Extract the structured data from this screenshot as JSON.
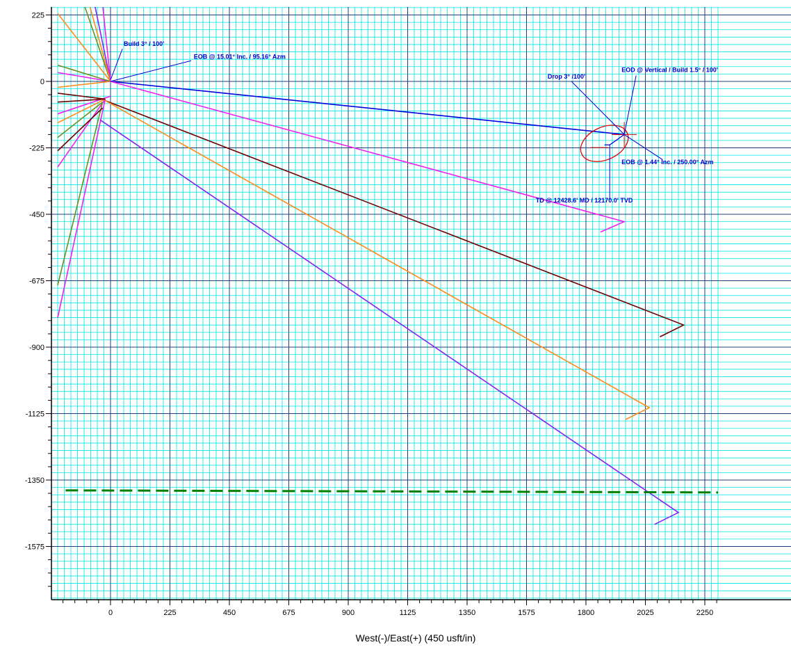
{
  "chart_data": {
    "type": "line",
    "title": "",
    "xlabel": "West(-)/East(+) (450 usft/in)",
    "ylabel": "",
    "xlim": [
      -200,
      2300
    ],
    "ylim": [
      -1750,
      260
    ],
    "x_ticks": [
      0,
      225,
      450,
      675,
      900,
      1125,
      1350,
      1575,
      1800,
      2025,
      2250
    ],
    "y_ticks": [
      225,
      0,
      -225,
      -450,
      -675,
      -900,
      -1125,
      -1350,
      -1575
    ],
    "grid": true,
    "colors": {
      "minor_grid": "#00e5e5",
      "major_grid": "#1f3f7a",
      "blue": "#0000dd",
      "magenta": "#ee22ee",
      "maroon": "#700000",
      "orange": "#ff8c1a",
      "purple": "#8822ee",
      "olive": "#6b8e23",
      "green": "#008000",
      "red": "#dd0000",
      "annotation": "#0000cc"
    },
    "series": [
      {
        "color": "blue",
        "points": [
          [
            0,
            0
          ],
          [
            1945,
            -180
          ]
        ]
      },
      {
        "color": "magenta",
        "points": [
          [
            0,
            0
          ],
          [
            1945,
            -475
          ],
          [
            1855,
            -510
          ]
        ]
      },
      {
        "color": "maroon",
        "points": [
          [
            -20,
            -65
          ],
          [
            2170,
            -825
          ],
          [
            2080,
            -865
          ]
        ]
      },
      {
        "color": "orange",
        "points": [
          [
            -20,
            -65
          ],
          [
            2040,
            -1105
          ],
          [
            1950,
            -1145
          ]
        ]
      },
      {
        "color": "purple",
        "points": [
          [
            -40,
            -130
          ],
          [
            2150,
            -1460
          ],
          [
            2060,
            -1500
          ]
        ]
      },
      {
        "color": "green",
        "dashed": true,
        "points": [
          [
            -170,
            -1385
          ],
          [
            2300,
            -1392
          ]
        ]
      }
    ],
    "fan_series": [
      {
        "color": "magenta",
        "points": [
          [
            0,
            0
          ],
          [
            -200,
            30
          ]
        ]
      },
      {
        "color": "magenta",
        "points": [
          [
            0,
            -50
          ],
          [
            -200,
            -110
          ]
        ]
      },
      {
        "color": "magenta",
        "points": [
          [
            -20,
            -60
          ],
          [
            -200,
            -290
          ]
        ]
      },
      {
        "color": "magenta",
        "points": [
          [
            -20,
            -60
          ],
          [
            -200,
            -800
          ]
        ]
      },
      {
        "color": "orange",
        "points": [
          [
            0,
            0
          ],
          [
            -200,
            -20
          ]
        ]
      },
      {
        "color": "orange",
        "points": [
          [
            -20,
            -60
          ],
          [
            -200,
            -140
          ]
        ]
      },
      {
        "color": "orange",
        "points": [
          [
            0,
            0
          ],
          [
            -200,
            230
          ]
        ]
      },
      {
        "color": "olive",
        "points": [
          [
            0,
            0
          ],
          [
            -200,
            55
          ]
        ]
      },
      {
        "color": "olive",
        "points": [
          [
            -30,
            -70
          ],
          [
            -200,
            -190
          ]
        ]
      },
      {
        "color": "olive",
        "points": [
          [
            -30,
            -70
          ],
          [
            -200,
            -690
          ]
        ]
      },
      {
        "color": "maroon",
        "points": [
          [
            -20,
            -60
          ],
          [
            -200,
            -40
          ]
        ]
      },
      {
        "color": "maroon",
        "points": [
          [
            -20,
            -60
          ],
          [
            -200,
            -70
          ]
        ]
      },
      {
        "color": "maroon",
        "points": [
          [
            -30,
            -90
          ],
          [
            -200,
            -235
          ]
        ]
      },
      {
        "color": "purple",
        "points": [
          [
            0,
            0
          ],
          [
            -60,
            260
          ]
        ]
      },
      {
        "color": "olive",
        "points": [
          [
            0,
            0
          ],
          [
            -100,
            260
          ]
        ]
      },
      {
        "color": "orange",
        "points": [
          [
            0,
            0
          ],
          [
            -80,
            260
          ]
        ]
      },
      {
        "color": "magenta",
        "points": [
          [
            0,
            0
          ],
          [
            -30,
            260
          ]
        ]
      }
    ],
    "target": {
      "center": [
        1870,
        -210
      ],
      "rx_units": 95,
      "ry_units": 55,
      "color": "red"
    },
    "annotations": [
      {
        "text": "Build 3° / 100'",
        "at": [
          50,
          120
        ],
        "leader": [
          [
            0,
            5
          ],
          [
            45,
            110
          ]
        ]
      },
      {
        "text": "EOB @ 15.01° Inc. / 95.16° Azm",
        "at": [
          315,
          77
        ],
        "leader": [
          [
            0,
            0
          ],
          [
            305,
            70
          ]
        ]
      },
      {
        "text": "Drop 3° /100'",
        "at": [
          1655,
          10
        ],
        "leader": [
          [
            1945,
            -180
          ],
          [
            1745,
            0
          ]
        ]
      },
      {
        "text": "EOD @ Vertical / Build 1.5° / 100'",
        "at": [
          1935,
          32
        ],
        "leader": [
          [
            1945,
            -180
          ],
          [
            1990,
            20
          ]
        ]
      },
      {
        "text": "EOB @ 1.44° Inc. / 250.00° Azm",
        "at": [
          1935,
          -280
        ],
        "leader": [
          [
            1945,
            -180
          ],
          [
            2090,
            -265
          ]
        ]
      },
      {
        "text": "TD @ 12428.6' MD / 12170.0' TVD",
        "at": [
          1610,
          -410
        ],
        "leader": [
          [
            1890,
            -215
          ],
          [
            1890,
            -400
          ]
        ]
      }
    ]
  }
}
